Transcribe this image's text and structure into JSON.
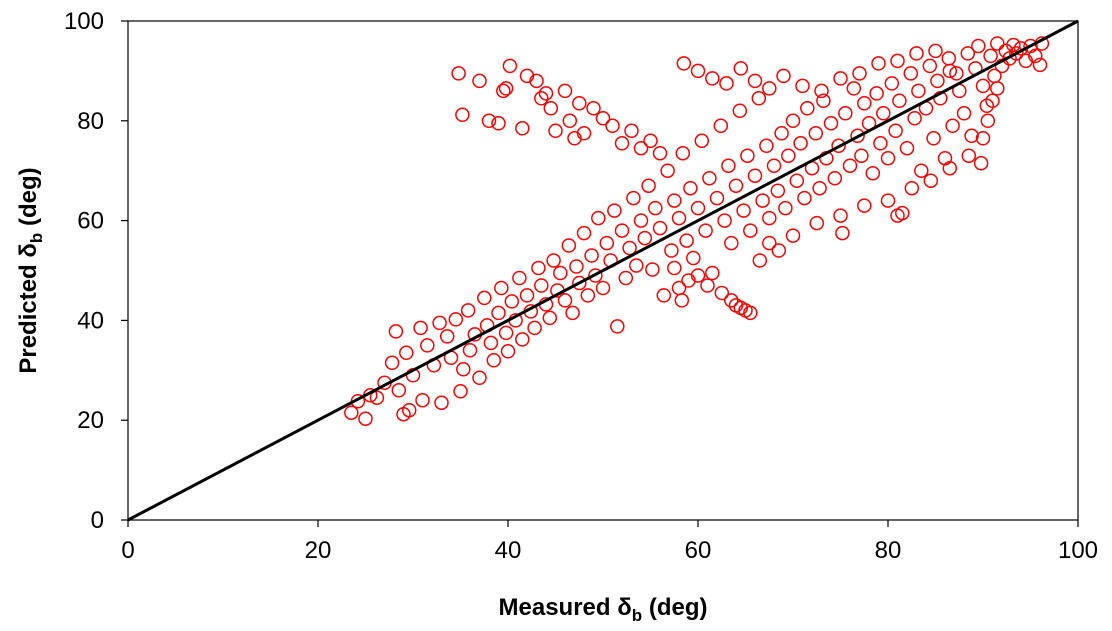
{
  "chart_data": {
    "type": "scatter",
    "title": "",
    "xlabel": "Measured δb (deg)",
    "ylabel": "Predicted δb (deg)",
    "xlim": [
      0,
      100
    ],
    "ylim": [
      0,
      100
    ],
    "xticks": [
      0,
      20,
      40,
      60,
      80,
      100
    ],
    "yticks": [
      0,
      20,
      40,
      60,
      80,
      100
    ],
    "grid": false,
    "legend": "none",
    "marker": "open-circle",
    "marker_color": "#ff0000",
    "reference_line": {
      "name": "",
      "x": [
        0,
        100
      ],
      "y": [
        0,
        100
      ],
      "color": "#000000"
    },
    "series": [
      {
        "color": "#ff0000",
        "points": [
          [
            23.5,
            21.5
          ],
          [
            24.2,
            23.8
          ],
          [
            25.0,
            20.3
          ],
          [
            25.5,
            25.0
          ],
          [
            26.2,
            24.5
          ],
          [
            27.0,
            27.5
          ],
          [
            27.8,
            31.5
          ],
          [
            28.5,
            26.0
          ],
          [
            29.0,
            21.2
          ],
          [
            29.6,
            22.0
          ],
          [
            28.2,
            37.8
          ],
          [
            29.3,
            33.5
          ],
          [
            30.0,
            29.0
          ],
          [
            30.8,
            38.5
          ],
          [
            31.0,
            24.0
          ],
          [
            31.5,
            35.0
          ],
          [
            32.2,
            31.0
          ],
          [
            32.8,
            39.5
          ],
          [
            33.0,
            23.5
          ],
          [
            33.6,
            36.8
          ],
          [
            34.0,
            32.5
          ],
          [
            34.5,
            40.2
          ],
          [
            35.0,
            25.8
          ],
          [
            35.3,
            30.2
          ],
          [
            35.8,
            42.0
          ],
          [
            36.0,
            34.0
          ],
          [
            36.5,
            37.2
          ],
          [
            37.0,
            28.5
          ],
          [
            37.5,
            44.5
          ],
          [
            37.8,
            39.0
          ],
          [
            38.2,
            35.5
          ],
          [
            38.5,
            32.0
          ],
          [
            39.0,
            41.5
          ],
          [
            39.3,
            46.5
          ],
          [
            39.8,
            37.5
          ],
          [
            40.0,
            33.8
          ],
          [
            40.4,
            43.8
          ],
          [
            40.8,
            40.0
          ],
          [
            41.2,
            48.5
          ],
          [
            41.5,
            36.2
          ],
          [
            42.0,
            45.0
          ],
          [
            42.4,
            41.8
          ],
          [
            42.8,
            38.5
          ],
          [
            43.2,
            50.5
          ],
          [
            43.5,
            47.0
          ],
          [
            44.0,
            43.2
          ],
          [
            44.4,
            40.5
          ],
          [
            44.8,
            52.0
          ],
          [
            45.2,
            46.0
          ],
          [
            45.5,
            49.5
          ],
          [
            46.0,
            44.0
          ],
          [
            46.4,
            55.0
          ],
          [
            46.8,
            41.5
          ],
          [
            47.2,
            50.8
          ],
          [
            47.5,
            47.5
          ],
          [
            48.0,
            57.5
          ],
          [
            48.4,
            45.0
          ],
          [
            48.8,
            53.0
          ],
          [
            49.2,
            49.0
          ],
          [
            49.5,
            60.5
          ],
          [
            50.0,
            46.5
          ],
          [
            50.4,
            55.5
          ],
          [
            50.8,
            52.0
          ],
          [
            51.2,
            62.0
          ],
          [
            51.5,
            38.8
          ],
          [
            52.0,
            58.0
          ],
          [
            52.4,
            48.5
          ],
          [
            52.8,
            54.5
          ],
          [
            53.2,
            64.5
          ],
          [
            53.5,
            51.0
          ],
          [
            54.0,
            60.0
          ],
          [
            54.4,
            56.5
          ],
          [
            54.8,
            67.0
          ],
          [
            55.2,
            50.2
          ],
          [
            55.5,
            62.5
          ],
          [
            56.0,
            58.5
          ],
          [
            56.4,
            45.0
          ],
          [
            56.8,
            70.0
          ],
          [
            57.2,
            54.0
          ],
          [
            57.5,
            64.0
          ],
          [
            58.0,
            60.5
          ],
          [
            58.4,
            73.5
          ],
          [
            58.8,
            56.0
          ],
          [
            59.2,
            66.5
          ],
          [
            59.5,
            52.5
          ],
          [
            60.0,
            62.5
          ],
          [
            60.4,
            76.0
          ],
          [
            60.8,
            58.0
          ],
          [
            61.2,
            68.5
          ],
          [
            61.5,
            49.5
          ],
          [
            62.0,
            64.5
          ],
          [
            62.4,
            79.0
          ],
          [
            62.8,
            60.0
          ],
          [
            63.2,
            71.0
          ],
          [
            63.5,
            55.5
          ],
          [
            64.0,
            67.0
          ],
          [
            64.4,
            82.0
          ],
          [
            64.8,
            62.0
          ],
          [
            65.2,
            73.0
          ],
          [
            65.5,
            58.0
          ],
          [
            66.0,
            69.0
          ],
          [
            66.4,
            84.5
          ],
          [
            66.8,
            64.0
          ],
          [
            67.2,
            75.0
          ],
          [
            67.5,
            60.5
          ],
          [
            68.0,
            71.0
          ],
          [
            68.4,
            66.0
          ],
          [
            68.8,
            77.5
          ],
          [
            69.2,
            62.5
          ],
          [
            69.5,
            73.0
          ],
          [
            70.0,
            80.0
          ],
          [
            70.4,
            68.0
          ],
          [
            70.8,
            75.5
          ],
          [
            71.2,
            64.5
          ],
          [
            71.5,
            82.5
          ],
          [
            72.0,
            70.5
          ],
          [
            72.4,
            77.5
          ],
          [
            72.8,
            66.5
          ],
          [
            73.2,
            84.0
          ],
          [
            73.5,
            72.5
          ],
          [
            74.0,
            79.5
          ],
          [
            74.4,
            68.5
          ],
          [
            74.8,
            75.0
          ],
          [
            75.2,
            57.5
          ],
          [
            75.5,
            81.5
          ],
          [
            76.0,
            71.0
          ],
          [
            76.4,
            86.5
          ],
          [
            76.8,
            77.0
          ],
          [
            77.2,
            73.0
          ],
          [
            77.5,
            83.5
          ],
          [
            78.0,
            79.5
          ],
          [
            78.4,
            69.5
          ],
          [
            78.8,
            85.5
          ],
          [
            79.2,
            75.5
          ],
          [
            79.5,
            81.5
          ],
          [
            80.0,
            72.5
          ],
          [
            80.4,
            87.5
          ],
          [
            80.8,
            78.0
          ],
          [
            81.2,
            84.0
          ],
          [
            81.5,
            61.5
          ],
          [
            82.0,
            74.5
          ],
          [
            82.4,
            89.5
          ],
          [
            82.8,
            80.5
          ],
          [
            83.2,
            86.0
          ],
          [
            83.5,
            70.0
          ],
          [
            84.0,
            82.5
          ],
          [
            84.4,
            91.0
          ],
          [
            84.8,
            76.5
          ],
          [
            85.2,
            88.0
          ],
          [
            85.5,
            84.5
          ],
          [
            86.0,
            72.5
          ],
          [
            86.4,
            92.5
          ],
          [
            86.8,
            79.0
          ],
          [
            87.2,
            89.5
          ],
          [
            87.5,
            86.0
          ],
          [
            88.0,
            81.5
          ],
          [
            88.4,
            93.5
          ],
          [
            88.8,
            77.0
          ],
          [
            89.2,
            90.5
          ],
          [
            89.5,
            95.0
          ],
          [
            90.0,
            87.0
          ],
          [
            90.4,
            83.0
          ],
          [
            90.8,
            93.0
          ],
          [
            91.2,
            89.0
          ],
          [
            91.5,
            95.5
          ],
          [
            92.0,
            91.0
          ],
          [
            92.4,
            94.0
          ],
          [
            92.8,
            92.5
          ],
          [
            93.2,
            95.2
          ],
          [
            93.5,
            93.5
          ],
          [
            94.0,
            94.5
          ],
          [
            94.5,
            92.0
          ],
          [
            95.0,
            95.0
          ],
          [
            95.5,
            93.0
          ],
          [
            96.0,
            91.2
          ],
          [
            96.2,
            95.5
          ],
          [
            34.8,
            89.5
          ],
          [
            35.2,
            81.2
          ],
          [
            37.0,
            88.0
          ],
          [
            38.0,
            80.0
          ],
          [
            39.0,
            79.5
          ],
          [
            39.5,
            86.0
          ],
          [
            39.8,
            86.5
          ],
          [
            40.2,
            91.0
          ],
          [
            41.5,
            78.5
          ],
          [
            42.0,
            89.0
          ],
          [
            43.0,
            88.0
          ],
          [
            43.5,
            84.5
          ],
          [
            44.0,
            85.5
          ],
          [
            44.5,
            82.5
          ],
          [
            45.0,
            78.0
          ],
          [
            46.0,
            86.0
          ],
          [
            46.5,
            80.0
          ],
          [
            47.0,
            76.5
          ],
          [
            47.5,
            83.5
          ],
          [
            48.0,
            77.5
          ],
          [
            49.0,
            82.5
          ],
          [
            50.0,
            80.5
          ],
          [
            51.0,
            79.0
          ],
          [
            52.0,
            75.5
          ],
          [
            53.0,
            78.0
          ],
          [
            54.0,
            74.5
          ],
          [
            55.0,
            76.0
          ],
          [
            56.0,
            73.5
          ],
          [
            58.5,
            91.5
          ],
          [
            60.0,
            90.0
          ],
          [
            61.5,
            88.5
          ],
          [
            63.0,
            87.5
          ],
          [
            64.5,
            90.5
          ],
          [
            66.0,
            88.0
          ],
          [
            67.5,
            86.5
          ],
          [
            69.0,
            89.0
          ],
          [
            71.0,
            87.0
          ],
          [
            73.0,
            86.0
          ],
          [
            75.0,
            88.5
          ],
          [
            77.0,
            89.5
          ],
          [
            79.0,
            91.5
          ],
          [
            81.0,
            92.0
          ],
          [
            83.0,
            93.5
          ],
          [
            85.0,
            94.0
          ],
          [
            86.5,
            90.0
          ],
          [
            61.0,
            47.0
          ],
          [
            62.5,
            45.5
          ],
          [
            63.5,
            44.0
          ],
          [
            64.0,
            43.0
          ],
          [
            64.5,
            42.5
          ],
          [
            65.0,
            42.0
          ],
          [
            65.5,
            41.5
          ],
          [
            58.0,
            46.5
          ],
          [
            60.0,
            49.0
          ],
          [
            57.5,
            50.5
          ],
          [
            58.3,
            44.0
          ],
          [
            59.0,
            48.0
          ],
          [
            66.5,
            52.0
          ],
          [
            67.5,
            55.5
          ],
          [
            68.5,
            54.0
          ],
          [
            70.0,
            57.0
          ],
          [
            72.5,
            59.5
          ],
          [
            75.0,
            61.0
          ],
          [
            77.5,
            63.0
          ],
          [
            80.0,
            64.0
          ],
          [
            81.0,
            61.0
          ],
          [
            82.5,
            66.5
          ],
          [
            84.5,
            68.0
          ],
          [
            86.5,
            70.5
          ],
          [
            88.5,
            73.0
          ],
          [
            90.0,
            76.5
          ],
          [
            90.5,
            80.0
          ],
          [
            91.0,
            84.0
          ],
          [
            91.5,
            86.5
          ],
          [
            89.8,
            71.5
          ]
        ]
      }
    ]
  }
}
